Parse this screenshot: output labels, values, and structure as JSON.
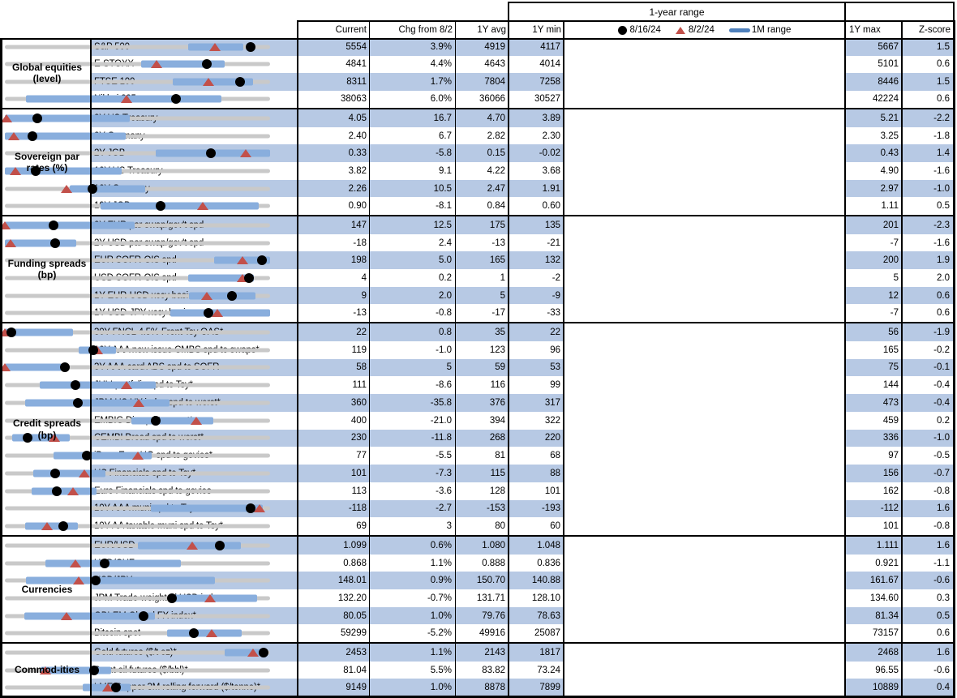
{
  "header": {
    "range_title": "1-year range",
    "columns": [
      "Current",
      "Chg from 8/2",
      "1Y avg",
      "1Y min",
      "1Y max",
      "Z-score"
    ],
    "legend": [
      {
        "marker": "dot-icon",
        "label": "8/16/24"
      },
      {
        "marker": "triangle-icon",
        "label": "8/2/24"
      },
      {
        "marker": "bar-icon",
        "label": "1M range"
      }
    ]
  },
  "colors": {
    "stripe": "#b7c9e4",
    "range_bar": "#89aedd",
    "track": "#c9c9c9",
    "dot": "#000000",
    "triangle": "#c2504a"
  },
  "chart_data": {
    "type": "table",
    "note": "Each row shows a dot-plot of the 1-year range: gray track spans 1Y min to 1Y max; blue bar = 1M range; black dot = 8/16/24 level; red triangle = 8/2/24 level. dot/tri/bar values are fractions of the min-to-max track.",
    "sections": [
      {
        "name": "Global equities (level)",
        "rows": [
          {
            "label": "S&P 500",
            "current": "5554",
            "chg": "3.9%",
            "avg": "4919",
            "min": "4117",
            "max": "5667",
            "z": "1.5",
            "bar": [
              0.69,
              0.9
            ],
            "dot": 0.927,
            "tri": 0.792
          },
          {
            "label": "E-STOXX",
            "current": "4841",
            "chg": "4.4%",
            "avg": "4643",
            "min": "4014",
            "max": "5101",
            "z": "0.6",
            "bar": [
              0.515,
              0.828
            ],
            "dot": 0.761,
            "tri": 0.573
          },
          {
            "label": "FTSE 100",
            "current": "8311",
            "chg": "1.7%",
            "avg": "7804",
            "min": "7258",
            "max": "8446",
            "z": "1.5",
            "bar": [
              0.632,
              0.937
            ],
            "dot": 0.886,
            "tri": 0.769
          },
          {
            "label": "Nikkei 225",
            "current": "38063",
            "chg": "6.0%",
            "avg": "36066",
            "min": "30527",
            "max": "42224",
            "z": "0.6",
            "bar": [
              0.081,
              0.816
            ],
            "dot": 0.644,
            "tri": 0.46
          }
        ]
      },
      {
        "name": "Sovereign par rates (%)",
        "rows": [
          {
            "label": "2Y US Treasury",
            "current": "4.05",
            "chg": "16.7",
            "avg": "4.70",
            "min": "3.89",
            "max": "5.21",
            "z": "-2.2",
            "bar": [
              0,
              0.47
            ],
            "dot": 0.121,
            "tri": 0.005
          },
          {
            "label": "2Y Germany",
            "current": "2.40",
            "chg": "6.7",
            "avg": "2.82",
            "min": "2.30",
            "max": "3.25",
            "z": "-1.8",
            "bar": [
              0,
              0.455
            ],
            "dot": 0.105,
            "tri": 0.035
          },
          {
            "label": "2Y JGB",
            "current": "0.33",
            "chg": "-5.8",
            "avg": "0.15",
            "min": "-0.02",
            "max": "0.43",
            "z": "1.4",
            "bar": [
              0.569,
              1.0
            ],
            "dot": 0.778,
            "tri": 0.907
          },
          {
            "label": "10Y US Treasury",
            "current": "3.82",
            "chg": "9.1",
            "avg": "4.22",
            "min": "3.68",
            "max": "4.90",
            "z": "-1.6",
            "bar": [
              0,
              0.44
            ],
            "dot": 0.115,
            "tri": 0.04
          },
          {
            "label": "10Y Germany",
            "current": "2.26",
            "chg": "10.5",
            "avg": "2.47",
            "min": "1.91",
            "max": "2.97",
            "z": "-1.0",
            "bar": [
              0.244,
              0.53
            ],
            "dot": 0.33,
            "tri": 0.231
          },
          {
            "label": "10Y JGB",
            "current": "0.90",
            "chg": "-8.1",
            "avg": "0.84",
            "min": "0.60",
            "max": "1.11",
            "z": "0.5",
            "bar": [
              0.361,
              0.958
            ],
            "dot": 0.588,
            "tri": 0.747
          }
        ]
      },
      {
        "name": "Funding spreads (bp)",
        "rows": [
          {
            "label": "2Y EUR par swap/gov't spd",
            "current": "147",
            "chg": "12.5",
            "avg": "175",
            "min": "135",
            "max": "201",
            "z": "-2.3",
            "bar": [
              0,
              0.49
            ],
            "dot": 0.182,
            "tri": 0.0
          },
          {
            "label": "2Y USD par swap/gov't spd",
            "current": "-18",
            "chg": "2.4",
            "avg": "-13",
            "min": "-21",
            "max": "-7",
            "z": "-1.6",
            "bar": [
              0,
              0.27
            ],
            "dot": 0.19,
            "tri": 0.02
          },
          {
            "label": "EUR SOFR-OIS spd",
            "current": "198",
            "chg": "5.0",
            "avg": "165",
            "min": "132",
            "max": "200",
            "z": "1.9",
            "bar": [
              0.79,
              1.0
            ],
            "dot": 0.97,
            "tri": 0.897
          },
          {
            "label": "USD SOFR-OIS spd",
            "current": "4",
            "chg": "0.2",
            "avg": "1",
            "min": "-2",
            "max": "5",
            "z": "2.0",
            "bar": [
              0.69,
              0.94
            ],
            "dot": 0.92,
            "tri": 0.895
          },
          {
            "label": "1Y EUR-USD xccy basis",
            "current": "9",
            "chg": "2.0",
            "avg": "5",
            "min": "-9",
            "max": "12",
            "z": "0.6",
            "bar": [
              0.695,
              0.945
            ],
            "dot": 0.857,
            "tri": 0.762
          },
          {
            "label": "1Y USD-JPY xccy basis",
            "current": "-13",
            "chg": "-0.8",
            "avg": "-17",
            "min": "-33",
            "max": "-7",
            "z": "0.6",
            "bar": [
              0.623,
              1.0
            ],
            "dot": 0.769,
            "tri": 0.8
          }
        ]
      },
      {
        "name": "Credit spreads (bp)",
        "rows": [
          {
            "label": "30Y FNCL 4.5% Front Tsy OAS*",
            "current": "22",
            "chg": "0.8",
            "avg": "35",
            "min": "22",
            "max": "56",
            "z": "-1.9",
            "bar": [
              0,
              0.256
            ],
            "dot": 0.025,
            "tri": 0.0
          },
          {
            "label": "10Y AAA new issue CMBS spd to swaps*",
            "current": "119",
            "chg": "-1.0",
            "avg": "123",
            "min": "96",
            "max": "165",
            "z": "-0.2",
            "bar": [
              0.277,
              0.419
            ],
            "dot": 0.333,
            "tri": 0.348
          },
          {
            "label": "3Y AAA card ABS spd to SOFR",
            "current": "58",
            "chg": "5",
            "avg": "59",
            "min": "53",
            "max": "75",
            "z": "-0.1",
            "bar": [
              0,
              0.214
            ],
            "dot": 0.227,
            "tri": 0.0
          },
          {
            "label": "JULI portfolio spd to Tsy*",
            "current": "111",
            "chg": "-8.6",
            "avg": "116",
            "min": "99",
            "max": "144",
            "z": "-0.4",
            "bar": [
              0.13,
              0.57
            ],
            "dot": 0.267,
            "tri": 0.458
          },
          {
            "label": "JPM US HY index spd to worst*",
            "current": "360",
            "chg": "-35.8",
            "avg": "376",
            "min": "317",
            "max": "473",
            "z": "-0.4",
            "bar": [
              0.077,
              0.62
            ],
            "dot": 0.276,
            "tri": 0.505
          },
          {
            "label": "EMBIG Div spd to worst*",
            "current": "400",
            "chg": "-21.0",
            "avg": "394",
            "min": "322",
            "max": "459",
            "z": "0.2",
            "bar": [
              0.476,
              0.786
            ],
            "dot": 0.569,
            "tri": 0.723
          },
          {
            "label": "CEMBI Broad spd to worst*",
            "current": "230",
            "chg": "-11.8",
            "avg": "268",
            "min": "220",
            "max": "336",
            "z": "-1.0",
            "bar": [
              0.027,
              0.244
            ],
            "dot": 0.086,
            "tri": 0.188
          },
          {
            "label": "iBoxx Euro HG spd to govies*",
            "current": "77",
            "chg": "-5.5",
            "avg": "81",
            "min": "68",
            "max": "97",
            "z": "-0.5",
            "bar": [
              0.184,
              0.554
            ],
            "dot": 0.31,
            "tri": 0.5
          },
          {
            "label": "US Financials spd to Tsy*",
            "current": "101",
            "chg": "-7.3",
            "avg": "115",
            "min": "88",
            "max": "156",
            "z": "-0.7",
            "bar": [
              0.108,
              0.38
            ],
            "dot": 0.191,
            "tri": 0.3
          },
          {
            "label": "Euro Financials spd to govies",
            "current": "113",
            "chg": "-3.6",
            "avg": "128",
            "min": "101",
            "max": "162",
            "z": "-0.8",
            "bar": [
              0.102,
              0.346
            ],
            "dot": 0.197,
            "tri": 0.256
          },
          {
            "label": "10Y AAA muni spd to Tsy",
            "current": "-118",
            "chg": "-2.7",
            "avg": "-153",
            "min": "-193",
            "max": "-112",
            "z": "1.6",
            "bar": [
              0.551,
              0.973
            ],
            "dot": 0.926,
            "tri": 0.959
          },
          {
            "label": "10Y AA taxable muni spd to Tsy*",
            "current": "69",
            "chg": "3",
            "avg": "80",
            "min": "60",
            "max": "101",
            "z": "-0.8",
            "bar": [
              0.075,
              0.274
            ],
            "dot": 0.22,
            "tri": 0.16
          }
        ]
      },
      {
        "name": "Currencies",
        "rows": [
          {
            "label": "EUR/USD",
            "current": "1.099",
            "chg": "0.6%",
            "avg": "1.080",
            "min": "1.048",
            "max": "1.111",
            "z": "1.6",
            "bar": [
              0.5,
              0.889
            ],
            "dot": 0.81,
            "tri": 0.705
          },
          {
            "label": "USD/CHF",
            "current": "0.868",
            "chg": "1.1%",
            "avg": "0.888",
            "min": "0.836",
            "max": "0.921",
            "z": "-1.1",
            "bar": [
              0.154,
              0.663
            ],
            "dot": 0.376,
            "tri": 0.266
          },
          {
            "label": "USD/JPY",
            "current": "148.01",
            "chg": "0.9%",
            "avg": "150.70",
            "min": "140.88",
            "max": "161.67",
            "z": "-0.6",
            "bar": [
              0.078,
              0.792
            ],
            "dot": 0.343,
            "tri": 0.279
          },
          {
            "label": "JPM Trade-weighted USD index",
            "current": "132.20",
            "chg": "-0.7%",
            "avg": "131.71",
            "min": "128.10",
            "max": "134.60",
            "z": "0.3",
            "bar": [
              0.62,
              0.952
            ],
            "dot": 0.631,
            "tri": 0.774
          },
          {
            "label": "GBI-EM Global FX index*",
            "current": "80.05",
            "chg": "1.0%",
            "avg": "79.76",
            "min": "78.63",
            "max": "81.34",
            "z": "0.5",
            "bar": [
              0.072,
              0.566
            ],
            "dot": 0.524,
            "tri": 0.232
          },
          {
            "label": "Bitcoin spot",
            "current": "59299",
            "chg": "-5.2%",
            "avg": "49916",
            "min": "25087",
            "max": "73157",
            "z": "0.6",
            "bar": [
              0.611,
              0.894
            ],
            "dot": 0.712,
            "tri": 0.779
          }
        ]
      },
      {
        "name": "Commod-ities",
        "rows": [
          {
            "label": "Gold futures ($/t oz)*",
            "current": "2453",
            "chg": "1.1%",
            "avg": "2143",
            "min": "1817",
            "max": "2468",
            "z": "1.6",
            "bar": [
              0.828,
              0.973
            ],
            "dot": 0.977,
            "tri": 0.936
          },
          {
            "label": "Brent oil futures ($/bbl)*",
            "current": "81.04",
            "chg": "5.5%",
            "avg": "83.82",
            "min": "73.24",
            "max": "96.55",
            "z": "-0.6",
            "bar": [
              0.135,
              0.4
            ],
            "dot": 0.335,
            "tri": 0.154
          },
          {
            "label": "LME Copper 3M rolling forward ($/tonne)*",
            "current": "9149",
            "chg": "1.0%",
            "avg": "8878",
            "min": "7899",
            "max": "10889",
            "z": "0.4",
            "bar": [
              0.295,
              0.473
            ],
            "dot": 0.418,
            "tri": 0.388
          }
        ]
      }
    ]
  }
}
